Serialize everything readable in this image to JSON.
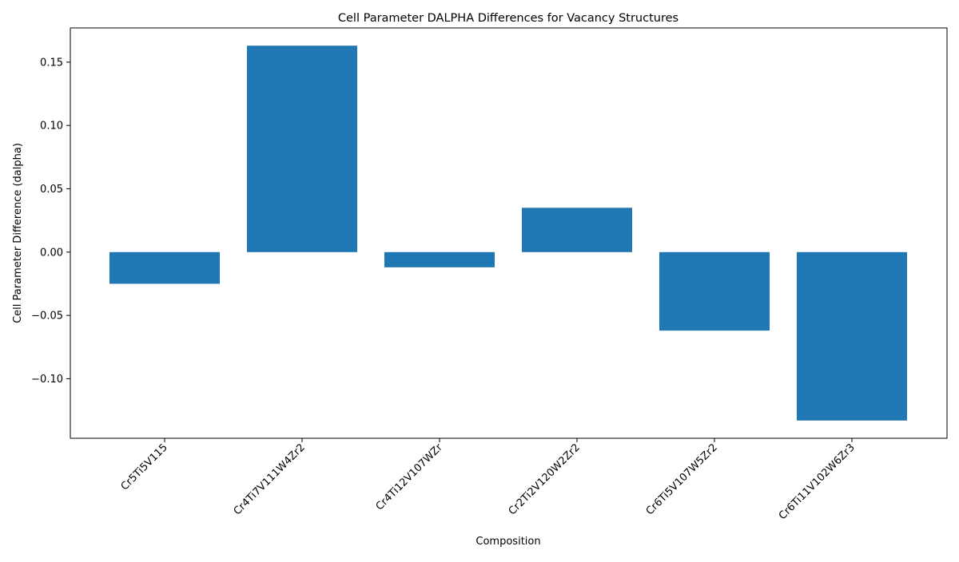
{
  "chart_data": {
    "type": "bar",
    "title": "Cell Parameter DALPHA Differences for Vacancy Structures",
    "xlabel": "Composition",
    "ylabel": "Cell Parameter Difference (dalpha)",
    "categories": [
      "Cr5Ti5V115",
      "Cr4Ti7V111W4Zr2",
      "Cr4Ti12V107WZr",
      "Cr2Ti2V120W2Zr2",
      "Cr6Ti5V107W5Zr2",
      "Cr6Ti11V102W6Zr3"
    ],
    "values": [
      -0.025,
      0.163,
      -0.012,
      0.035,
      -0.062,
      -0.133
    ],
    "ylim": [
      -0.147,
      0.177
    ],
    "yticks": [
      -0.1,
      -0.05,
      0.0,
      0.05,
      0.1,
      0.15
    ],
    "ytick_labels": [
      "−0.10",
      "−0.05",
      "0.00",
      "0.05",
      "0.10",
      "0.15"
    ],
    "grid": false,
    "legend": "none",
    "bar_color": "#1f77b4"
  }
}
